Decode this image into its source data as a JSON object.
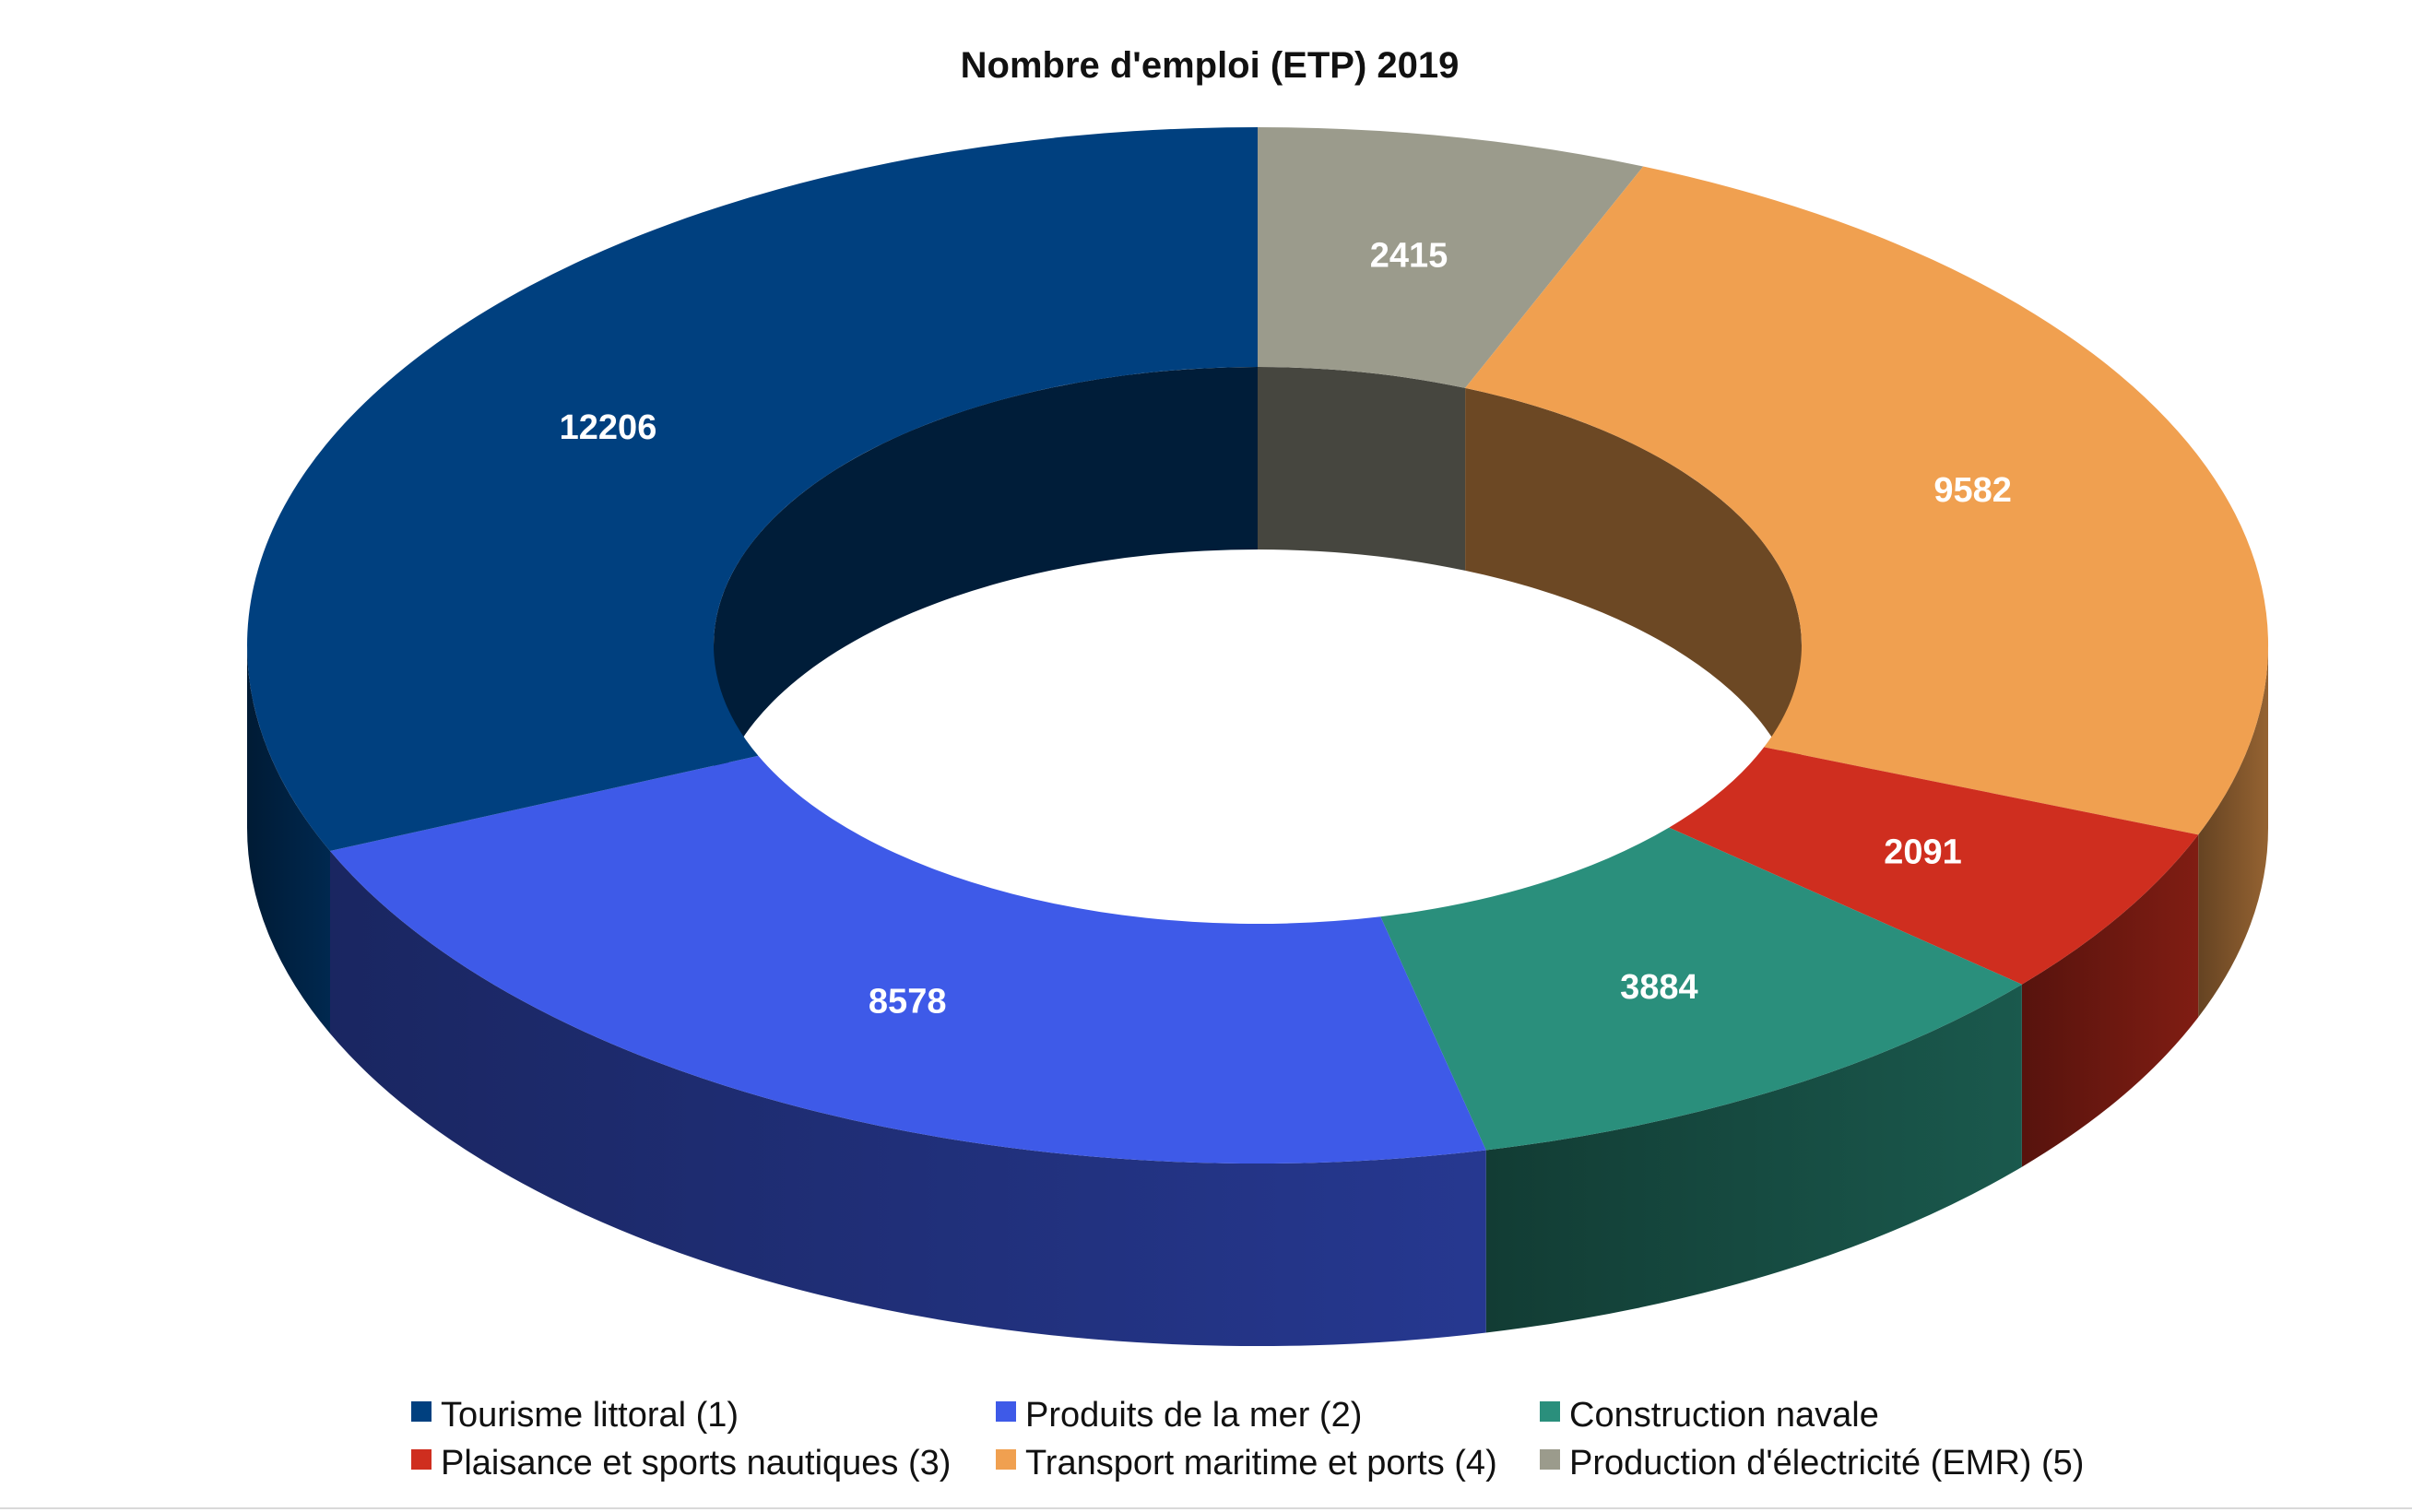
{
  "chart_data": {
    "type": "pie",
    "variant": "donut-3d",
    "title": "Nombre d'emploi (ETP) 2019",
    "legend_position": "bottom",
    "series": [
      {
        "name": "Tourisme littoral (1)",
        "value": 12206,
        "color": "#00407F"
      },
      {
        "name": "Produits de la mer (2)",
        "value": 8578,
        "color": "#3E5AE8"
      },
      {
        "name": "Construction navale",
        "value": 3884,
        "color": "#2A8F7C"
      },
      {
        "name": "Plaisance et sports nautiques (3)",
        "value": 2091,
        "color": "#CF2E1F"
      },
      {
        "name": "Transport maritime et ports (4)",
        "value": 9582,
        "color": "#F0A050"
      },
      {
        "name": "Production d'électricité (EMR) (5)",
        "value": 2415,
        "color": "#9B9B8C"
      }
    ]
  }
}
